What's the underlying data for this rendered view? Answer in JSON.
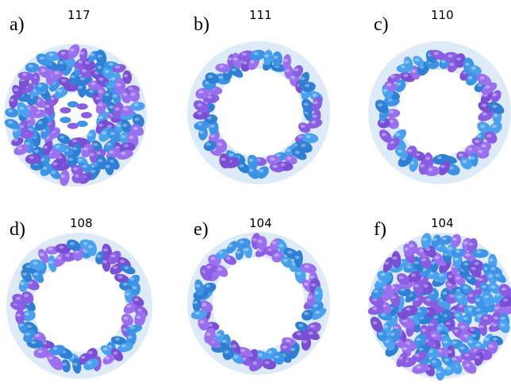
{
  "panels": [
    {
      "label": "a)",
      "number": "117"
    },
    {
      "label": "b)",
      "number": "111"
    },
    {
      "label": "c)",
      "number": "110"
    },
    {
      "label": "d)",
      "number": "108"
    },
    {
      "label": "e)",
      "number": "104"
    },
    {
      "label": "f)",
      "number": "104"
    }
  ]
}
